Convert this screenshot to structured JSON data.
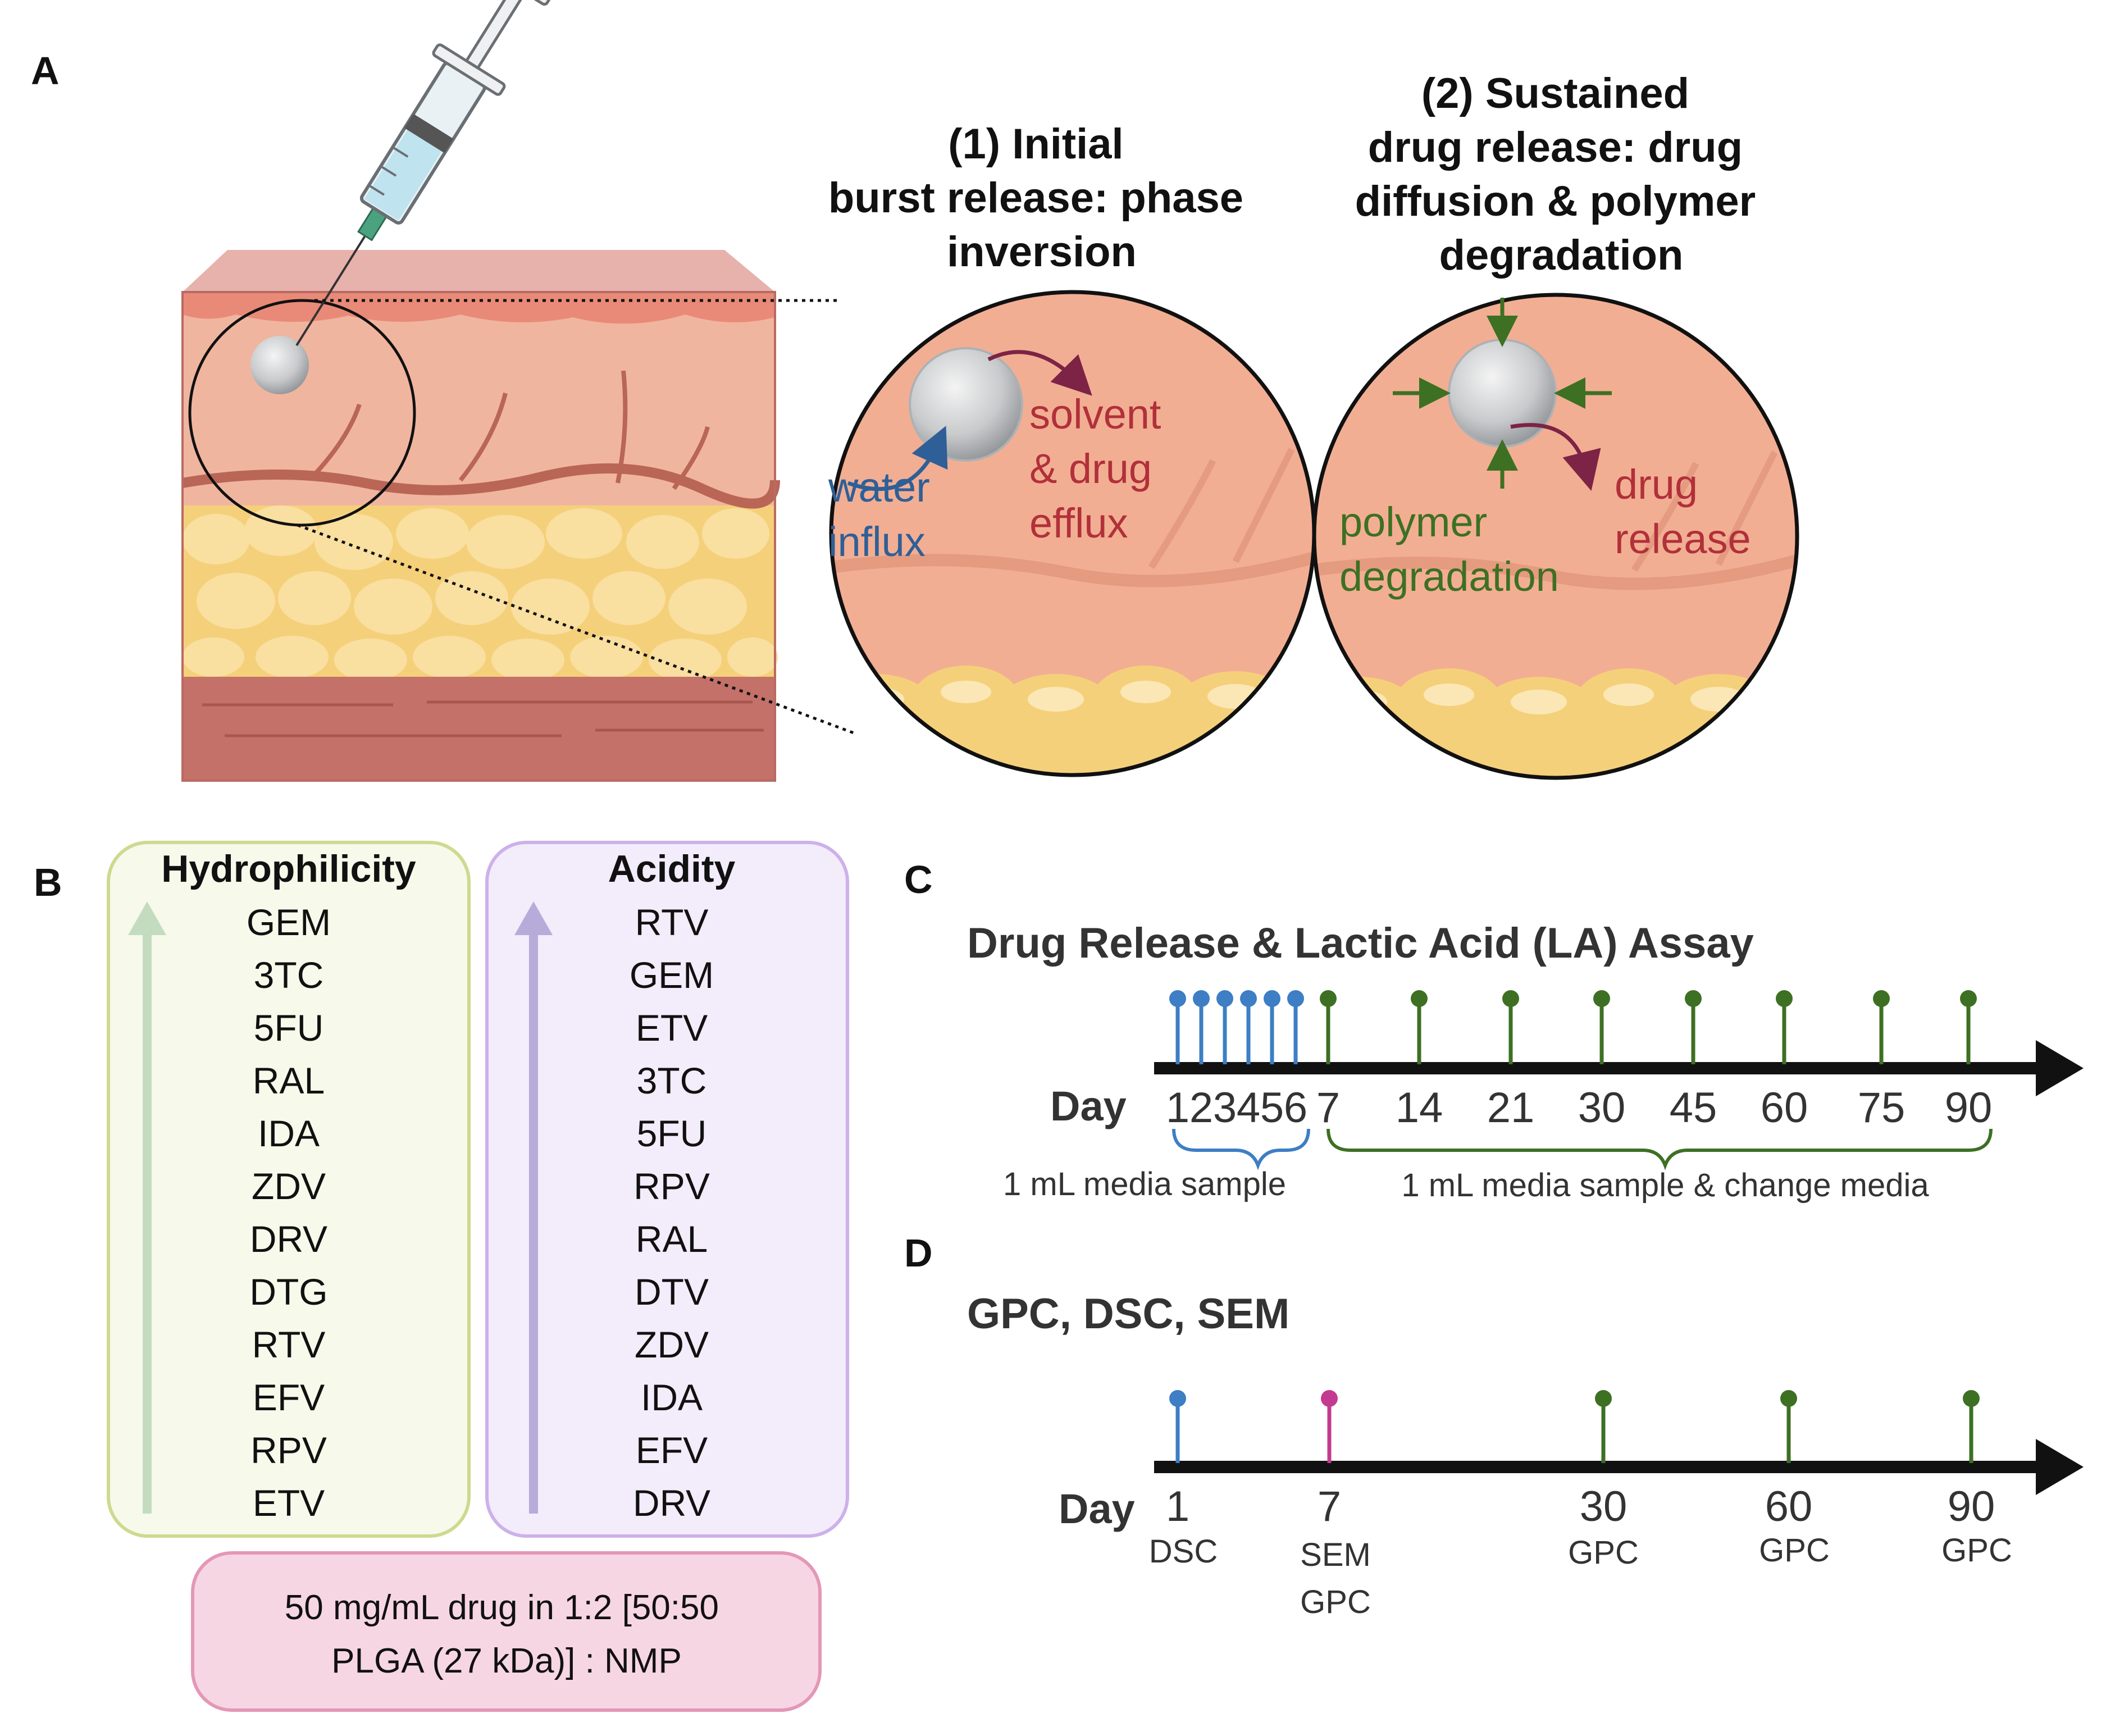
{
  "panel_labels": {
    "a": "A",
    "b": "B",
    "c": "C",
    "d": "D"
  },
  "panel_a": {
    "stage1_title": [
      "(1) Initial",
      "burst release: phase",
      "inversion"
    ],
    "stage2_title": [
      "(2) Sustained",
      "drug release: drug",
      "diffusion & polymer",
      "degradation"
    ],
    "stage1_labels": {
      "water": [
        "water",
        "influx"
      ],
      "solvent": [
        "solvent",
        "& drug",
        "efflux"
      ]
    },
    "stage2_labels": {
      "polymer": [
        "polymer",
        "degradation"
      ],
      "drug": [
        "drug",
        "release"
      ]
    },
    "colors": {
      "water": "#2f5f97",
      "efflux": "#b1303a",
      "polymer": "#3d7023"
    }
  },
  "panel_b": {
    "hydrophilicity": {
      "title": "Hydrophilicity",
      "items": [
        "GEM",
        "3TC",
        "5FU",
        "RAL",
        "IDA",
        "ZDV",
        "DRV",
        "DTG",
        "RTV",
        "EFV",
        "RPV",
        "ETV"
      ]
    },
    "acidity": {
      "title": "Acidity",
      "items": [
        "RTV",
        "GEM",
        "ETV",
        "3TC",
        "5FU",
        "RPV",
        "RAL",
        "DTV",
        "ZDV",
        "IDA",
        "EFV",
        "DRV"
      ]
    },
    "formulation": [
      "50 mg/mL drug in 1:2 [50:50",
      "PLGA (27 kDa)] : NMP"
    ]
  },
  "panel_c": {
    "title": "Drug Release & Lactic Acid (LA) Assay",
    "day_label": "Day",
    "days": [
      "1",
      "2",
      "3",
      "4",
      "5",
      "6",
      "7",
      "14",
      "21",
      "30",
      "45",
      "60",
      "75",
      "90"
    ],
    "sample_note": "1 mL media sample",
    "change_note": "1 mL media sample & change media"
  },
  "panel_d": {
    "title": "GPC, DSC, SEM",
    "day_label": "Day",
    "events": [
      {
        "day": "1",
        "assays": [
          "DSC"
        ],
        "color": "#3d7ec4"
      },
      {
        "day": "7",
        "assays": [
          "SEM",
          "GPC"
        ],
        "color": "#c43a91"
      },
      {
        "day": "30",
        "assays": [
          "GPC"
        ],
        "color": "#3d7023"
      },
      {
        "day": "60",
        "assays": [
          "GPC"
        ],
        "color": "#3d7023"
      },
      {
        "day": "90",
        "assays": [
          "GPC"
        ],
        "color": "#3d7023"
      }
    ]
  }
}
